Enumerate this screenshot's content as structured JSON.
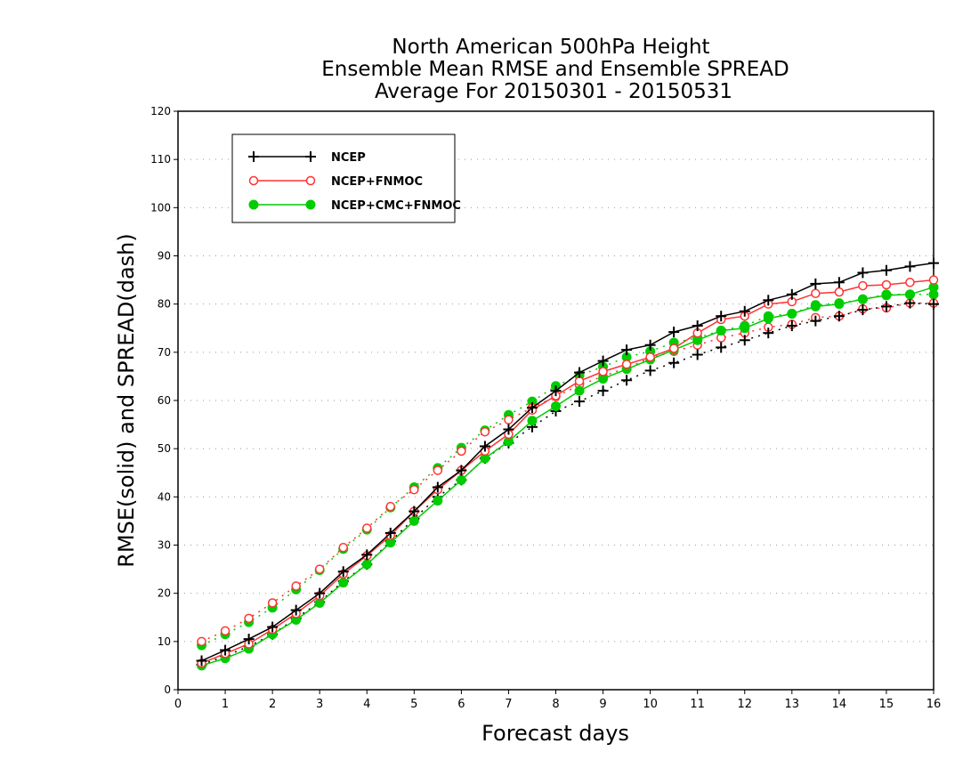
{
  "chart_data": {
    "type": "line",
    "title": [
      "North American 500hPa Height",
      "Ensemble Mean RMSE and Ensemble SPREAD",
      "Average For 20150301 - 20150531"
    ],
    "xlabel": "Forecast days",
    "ylabel": "RMSE(solid) and SPREAD(dash)",
    "xlim": [
      0,
      16
    ],
    "ylim": [
      0,
      120
    ],
    "xticks": [
      "0",
      "1",
      "2",
      "3",
      "4",
      "5",
      "6",
      "7",
      "8",
      "9",
      "10",
      "11",
      "12",
      "13",
      "14",
      "15",
      "16"
    ],
    "yticks": [
      "0",
      "10",
      "20",
      "30",
      "40",
      "50",
      "60",
      "70",
      "80",
      "90",
      "100",
      "110",
      "120"
    ],
    "grid": true,
    "legend_position": "top-left",
    "x": [
      0.5,
      1,
      1.5,
      2,
      2.5,
      3,
      3.5,
      4,
      4.5,
      5,
      5.5,
      6,
      6.5,
      7,
      7.5,
      8,
      8.5,
      9,
      9.5,
      10,
      10.5,
      11,
      11.5,
      12,
      12.5,
      13,
      13.5,
      14,
      14.5,
      15,
      15.5,
      16
    ],
    "series": [
      {
        "name": "NCEP",
        "color": "#000000",
        "marker": "plus",
        "rmse": [
          6.0,
          8.2,
          10.5,
          13.0,
          16.5,
          20.0,
          24.5,
          28.0,
          32.5,
          37.0,
          42.0,
          45.5,
          50.5,
          54.0,
          58.5,
          62.0,
          65.8,
          68.2,
          70.5,
          71.5,
          74.2,
          75.5,
          77.5,
          78.5,
          80.8,
          82.0,
          84.2,
          84.5,
          86.5,
          87.0,
          87.8,
          88.5
        ],
        "spread": [
          5.2,
          7.0,
          9.0,
          11.5,
          14.8,
          18.2,
          22.5,
          26.0,
          30.8,
          35.5,
          40.0,
          43.5,
          48.0,
          51.2,
          54.5,
          57.8,
          59.8,
          62.0,
          64.2,
          66.2,
          67.8,
          69.5,
          71.0,
          72.5,
          74.0,
          75.5,
          76.5,
          77.5,
          78.8,
          79.5,
          80.2,
          80.0
        ]
      },
      {
        "name": "NCEP+FNMOC",
        "color": "#ff3333",
        "marker": "open-circle",
        "rmse": [
          5.5,
          7.5,
          9.5,
          12.5,
          15.8,
          19.5,
          24.0,
          27.8,
          32.0,
          37.0,
          41.5,
          45.5,
          49.5,
          53.0,
          58.0,
          61.0,
          64.0,
          66.0,
          67.5,
          69.0,
          70.8,
          74.0,
          76.8,
          77.5,
          80.0,
          80.5,
          82.2,
          82.5,
          83.8,
          84.0,
          84.5,
          85.0
        ],
        "spread": [
          10.0,
          12.2,
          14.8,
          18.0,
          21.5,
          25.0,
          29.5,
          33.5,
          38.0,
          41.5,
          45.5,
          49.5,
          53.5,
          56.0,
          58.5,
          60.8,
          63.2,
          65.0,
          66.8,
          68.8,
          70.2,
          71.5,
          73.0,
          74.0,
          75.2,
          75.8,
          77.2,
          77.5,
          79.0,
          79.2,
          80.2,
          80.2
        ]
      },
      {
        "name": "NCEP+CMC+FNMOC",
        "color": "#00cc00",
        "marker": "filled-circle",
        "rmse": [
          5.0,
          6.5,
          8.5,
          11.5,
          14.5,
          18.0,
          22.2,
          26.0,
          30.5,
          35.0,
          39.2,
          43.5,
          48.0,
          51.5,
          55.8,
          58.8,
          62.0,
          64.5,
          66.5,
          68.5,
          70.5,
          72.5,
          74.5,
          75.0,
          77.0,
          78.0,
          79.5,
          80.0,
          81.0,
          81.8,
          82.0,
          83.5
        ],
        "spread": [
          9.2,
          11.5,
          14.0,
          17.0,
          20.8,
          24.8,
          29.2,
          33.2,
          37.8,
          42.0,
          46.0,
          50.2,
          53.8,
          57.0,
          59.8,
          63.0,
          65.2,
          67.0,
          69.0,
          70.2,
          72.0,
          73.0,
          74.5,
          75.5,
          77.5,
          78.0,
          79.8,
          80.2,
          81.0,
          82.0,
          82.0,
          82.0
        ]
      }
    ]
  }
}
